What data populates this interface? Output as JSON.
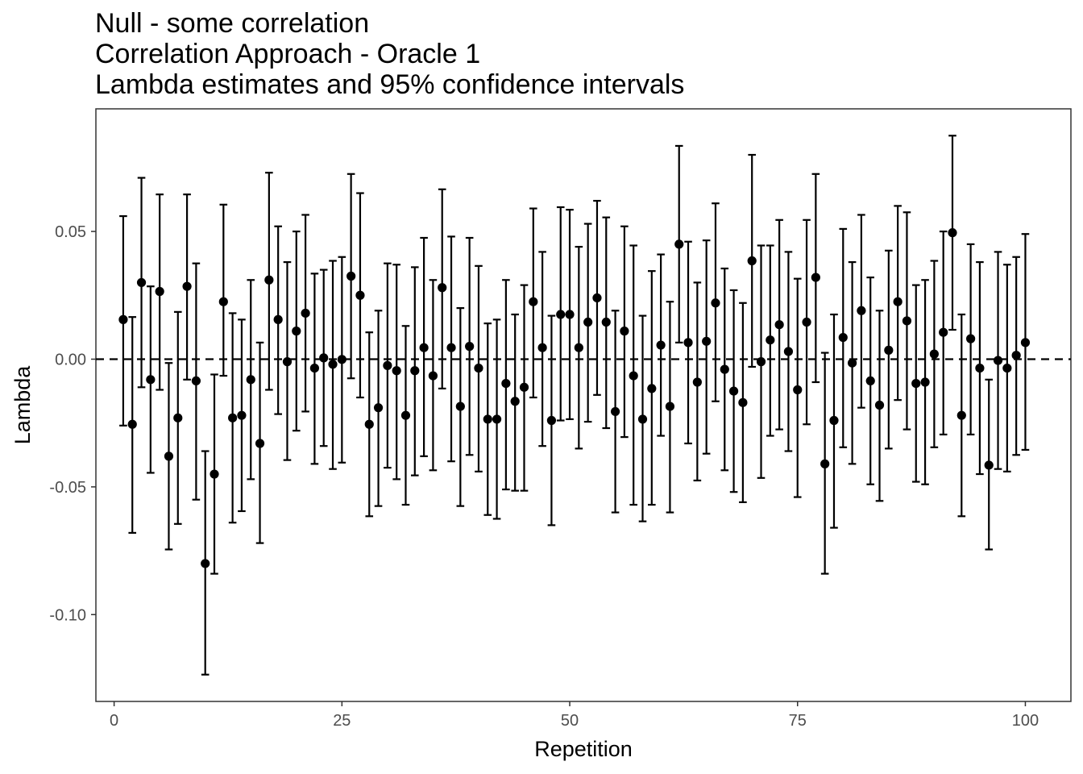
{
  "chart_data": {
    "type": "scatter",
    "title_lines": [
      "Null - some correlation",
      "Correlation Approach - Oracle 1",
      "Lambda estimates and 95% confidence intervals"
    ],
    "xlabel": "Repetition",
    "ylabel": "Lambda",
    "xlim": [
      -2,
      105
    ],
    "ylim": [
      -0.134,
      0.098
    ],
    "x_ticks": [
      0,
      25,
      50,
      75,
      100
    ],
    "x_tick_labels": [
      "0",
      "25",
      "50",
      "75",
      "100"
    ],
    "y_ticks": [
      0.05,
      0.0,
      -0.05,
      -0.1
    ],
    "y_tick_labels": [
      "0.05",
      "0.00",
      "-0.05",
      "-0.10"
    ],
    "reference_line": {
      "y": 0,
      "style": "dashed"
    },
    "grid": false,
    "colors": {
      "points": "#000000",
      "frame": "#333333"
    },
    "series": [
      {
        "x": [
          1,
          2,
          3,
          4,
          5,
          6,
          7,
          8,
          9,
          10,
          11,
          12,
          13,
          14,
          15,
          16,
          17,
          18,
          19,
          20,
          21,
          22,
          23,
          24,
          25,
          26,
          27,
          28,
          29,
          30,
          31,
          32,
          33,
          34,
          35,
          36,
          37,
          38,
          39,
          40,
          41,
          42,
          43,
          44,
          45,
          46,
          47,
          48,
          49,
          50,
          51,
          52,
          53,
          54,
          55,
          56,
          57,
          58,
          59,
          60,
          61,
          62,
          63,
          64,
          65,
          66,
          67,
          68,
          69,
          70,
          71,
          72,
          73,
          74,
          75,
          76,
          77,
          78,
          79,
          80,
          81,
          82,
          83,
          84,
          85,
          86,
          87,
          88,
          89,
          90,
          91,
          92,
          93,
          94,
          95,
          96,
          97,
          98,
          99,
          100
        ],
        "y": [
          0.0155,
          -0.0255,
          0.03,
          -0.008,
          0.0265,
          -0.038,
          -0.023,
          0.0285,
          -0.0085,
          -0.08,
          -0.045,
          0.0225,
          -0.023,
          -0.022,
          -0.008,
          -0.033,
          0.031,
          0.0155,
          -0.001,
          0.011,
          0.018,
          -0.0035,
          0.0005,
          -0.002,
          -0.0001,
          0.0325,
          0.025,
          -0.0255,
          -0.019,
          -0.0025,
          -0.0045,
          -0.022,
          -0.0045,
          0.0045,
          -0.0065,
          0.028,
          0.0045,
          -0.0185,
          0.005,
          -0.0035,
          -0.0235,
          -0.0235,
          -0.0095,
          -0.0165,
          -0.011,
          0.0225,
          0.0045,
          -0.024,
          0.0175,
          0.0175,
          0.0045,
          0.0145,
          0.024,
          0.0145,
          -0.0205,
          0.011,
          -0.0065,
          -0.0235,
          -0.0115,
          0.0055,
          -0.0185,
          0.045,
          0.0065,
          -0.009,
          0.007,
          0.022,
          -0.004,
          -0.0125,
          -0.017,
          0.0385,
          -0.001,
          0.0075,
          0.0135,
          0.003,
          -0.012,
          0.0145,
          0.032,
          -0.041,
          -0.024,
          0.0085,
          -0.0015,
          0.019,
          -0.0085,
          -0.018,
          0.0035,
          0.0225,
          0.015,
          -0.0095,
          -0.009,
          0.002,
          0.0105,
          0.0495,
          -0.022,
          0.008,
          -0.0035,
          -0.0415,
          -0.0005,
          -0.0035,
          0.0015,
          0.0065
        ],
        "lower": [
          -0.026,
          -0.068,
          -0.011,
          -0.0445,
          -0.012,
          -0.0745,
          -0.0645,
          -0.008,
          -0.055,
          -0.1235,
          -0.084,
          -0.0065,
          -0.064,
          -0.0595,
          -0.047,
          -0.072,
          -0.012,
          -0.0215,
          -0.0395,
          -0.028,
          -0.0205,
          -0.041,
          -0.034,
          -0.043,
          -0.0405,
          -0.0075,
          -0.015,
          -0.0615,
          -0.0575,
          -0.0425,
          -0.047,
          -0.057,
          -0.0455,
          -0.038,
          -0.0435,
          -0.0115,
          -0.04,
          -0.0575,
          -0.0375,
          -0.044,
          -0.061,
          -0.0625,
          -0.051,
          -0.0515,
          -0.0515,
          -0.015,
          -0.034,
          -0.065,
          -0.024,
          -0.0235,
          -0.035,
          -0.0245,
          -0.014,
          -0.027,
          -0.06,
          -0.0305,
          -0.057,
          -0.0635,
          -0.057,
          -0.03,
          -0.06,
          0.0065,
          -0.033,
          -0.0475,
          -0.037,
          -0.0165,
          -0.0435,
          -0.052,
          -0.056,
          -0.003,
          -0.0465,
          -0.03,
          -0.0275,
          -0.036,
          -0.054,
          -0.0255,
          -0.009,
          -0.084,
          -0.066,
          -0.0345,
          -0.041,
          -0.019,
          -0.049,
          -0.0555,
          -0.035,
          -0.016,
          -0.0275,
          -0.048,
          -0.049,
          -0.0345,
          -0.0295,
          0.0115,
          -0.0615,
          -0.0295,
          -0.045,
          -0.0745,
          -0.043,
          -0.044,
          -0.0375,
          -0.0355
        ],
        "upper": [
          0.056,
          0.0165,
          0.071,
          0.0285,
          0.0645,
          -0.0015,
          0.0185,
          0.0645,
          0.0375,
          -0.036,
          -0.006,
          0.0605,
          0.018,
          0.0155,
          0.031,
          0.0065,
          0.073,
          0.052,
          0.038,
          0.05,
          0.0565,
          0.0335,
          0.035,
          0.0385,
          0.04,
          0.0725,
          0.065,
          0.0105,
          0.019,
          0.0375,
          0.037,
          0.013,
          0.036,
          0.0475,
          0.031,
          0.0665,
          0.048,
          0.02,
          0.0475,
          0.0365,
          0.014,
          0.0155,
          0.031,
          0.0175,
          0.029,
          0.059,
          0.042,
          0.017,
          0.0595,
          0.0585,
          0.044,
          0.053,
          0.062,
          0.0555,
          0.019,
          0.052,
          0.0445,
          0.017,
          0.0345,
          0.041,
          0.0225,
          0.0835,
          0.046,
          0.03,
          0.0465,
          0.061,
          0.0355,
          0.027,
          0.022,
          0.08,
          0.0445,
          0.0445,
          0.0545,
          0.042,
          0.0315,
          0.0545,
          0.0725,
          0.0025,
          0.0175,
          0.051,
          0.038,
          0.0565,
          0.032,
          0.019,
          0.0425,
          0.06,
          0.0575,
          0.029,
          0.031,
          0.0385,
          0.05,
          0.0875,
          0.0175,
          0.045,
          0.038,
          -0.008,
          0.042,
          0.037,
          0.04,
          0.049
        ]
      }
    ]
  }
}
